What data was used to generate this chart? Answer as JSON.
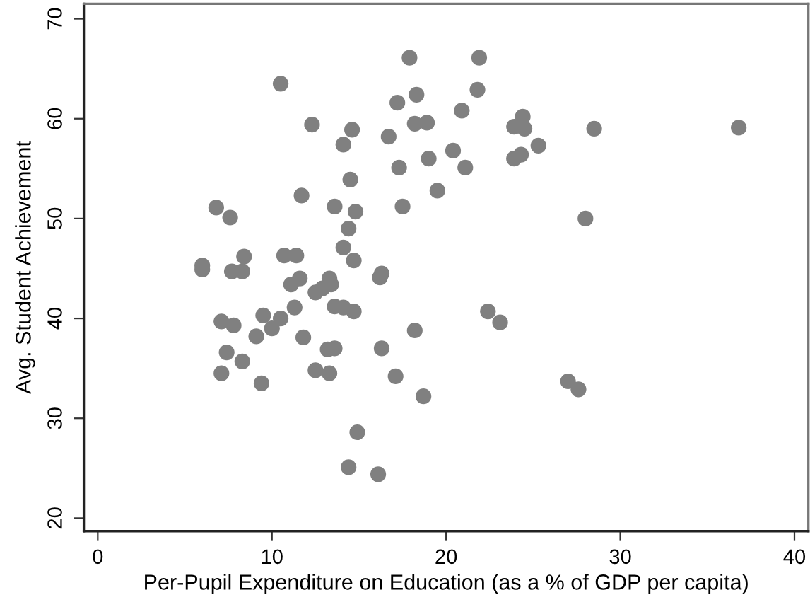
{
  "chart_data": {
    "type": "scatter",
    "xlabel": "Per-Pupil Expenditure on Education (as a % of GDP per capita)",
    "ylabel": "Avg. Student Achievement",
    "xlim": [
      -0.8,
      40.8
    ],
    "ylim": [
      18.7,
      71.5
    ],
    "xticks": [
      0,
      10,
      20,
      30,
      40
    ],
    "yticks": [
      20,
      30,
      40,
      50,
      60,
      70
    ],
    "grid": false,
    "marker": "circle",
    "series": [
      {
        "color": "#808080",
        "x": [
          10.5,
          12.3,
          11.7,
          6.8,
          7.6,
          13.6,
          6.0,
          6.0,
          8.4,
          7.7,
          8.3,
          10.7,
          11.4,
          11.1,
          11.6,
          12.5,
          12.9,
          13.3,
          13.4,
          11.3,
          7.1,
          7.8,
          9.5,
          10.5,
          10.0,
          9.1,
          11.8,
          7.4,
          8.3,
          7.1,
          9.4,
          12.5,
          13.3,
          13.2,
          13.6,
          17.9,
          21.9,
          14.6,
          14.1,
          17.2,
          18.3,
          21.8,
          20.9,
          18.2,
          18.9,
          16.7,
          24.4,
          23.9,
          24.5,
          25.3,
          23.9,
          24.3,
          20.4,
          19.0,
          21.1,
          17.3,
          14.5,
          19.5,
          14.8,
          17.5,
          14.4,
          14.1,
          14.7,
          16.3,
          16.2,
          13.6,
          14.1,
          14.7,
          22.4,
          23.1,
          16.3,
          18.2,
          17.1,
          18.7,
          14.9,
          14.4,
          16.1,
          27.0,
          27.6,
          28.5,
          36.8,
          28.0
        ],
        "values": [
          63.5,
          59.4,
          52.3,
          51.1,
          50.1,
          51.2,
          45.3,
          44.9,
          46.2,
          44.7,
          44.7,
          46.3,
          46.3,
          43.4,
          44.0,
          42.6,
          43.0,
          44.0,
          43.4,
          41.1,
          39.7,
          39.3,
          40.3,
          40.0,
          39.0,
          38.2,
          38.1,
          36.6,
          35.7,
          34.5,
          33.5,
          34.8,
          34.5,
          36.9,
          37.0,
          66.1,
          66.1,
          58.9,
          57.4,
          61.6,
          62.4,
          62.9,
          60.8,
          59.5,
          59.6,
          58.2,
          60.2,
          59.2,
          59.0,
          57.3,
          56.0,
          56.4,
          56.8,
          56.0,
          55.1,
          55.1,
          53.9,
          52.8,
          50.7,
          51.2,
          49.0,
          47.1,
          45.8,
          44.5,
          44.1,
          41.2,
          41.1,
          40.7,
          40.7,
          39.6,
          37.0,
          38.8,
          34.2,
          32.2,
          28.6,
          25.1,
          24.4,
          33.7,
          32.9,
          59.0,
          59.1,
          50.0
        ]
      }
    ]
  }
}
